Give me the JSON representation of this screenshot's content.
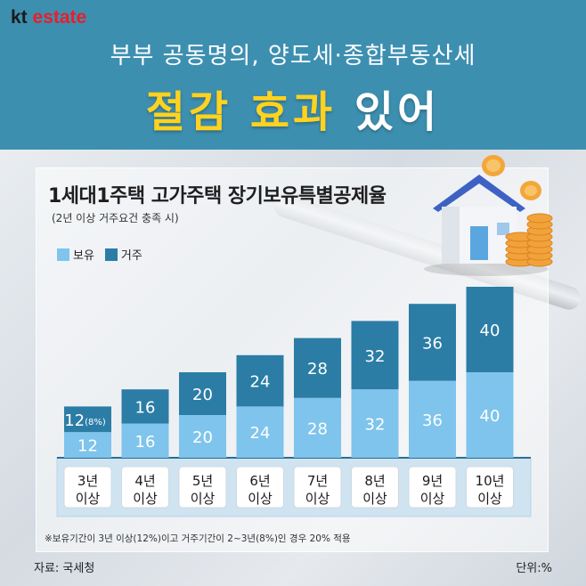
{
  "brand": {
    "kt": "kt",
    "estate": "estate"
  },
  "header": {
    "subtitle": "부부 공동명의, 양도세·종합부동산세",
    "headline_yellow": "절감 효과",
    "headline_white": "있어"
  },
  "chart_title": "1세대1주택 고가주택 장기보유특별공제율",
  "chart_subtitle": "(2년 이상 거주요건 충족 시)",
  "legend": [
    {
      "label": "보유",
      "color": "#7fc4ec"
    },
    {
      "label": "거주",
      "color": "#2b7da6"
    }
  ],
  "chart_data": {
    "type": "bar",
    "stacked": true,
    "categories": [
      [
        "3년",
        "이상"
      ],
      [
        "4년",
        "이상"
      ],
      [
        "5년",
        "이상"
      ],
      [
        "6년",
        "이상"
      ],
      [
        "7년",
        "이상"
      ],
      [
        "8년",
        "이상"
      ],
      [
        "9년",
        "이상"
      ],
      [
        "10년",
        "이상"
      ]
    ],
    "series": [
      {
        "name": "보유",
        "values": [
          12,
          16,
          20,
          24,
          28,
          32,
          36,
          40
        ],
        "color": "#7fc4ec"
      },
      {
        "name": "거주",
        "values": [
          12,
          16,
          20,
          24,
          28,
          32,
          36,
          40
        ],
        "color": "#2b7da6"
      }
    ],
    "labels": {
      "보유": [
        "12",
        "16",
        "20",
        "24",
        "28",
        "32",
        "36",
        "40"
      ],
      "거주": [
        "12",
        "16",
        "20",
        "24",
        "28",
        "32",
        "36",
        "40"
      ]
    },
    "annotation": {
      "category_index": 0,
      "text": "(8%)"
    },
    "ylim": [
      0,
      80
    ],
    "grid": false
  },
  "note": "※보유기간이 3년 이상(12%)이고 거주기간이 2~3년(8%)인 경우 20% 적용",
  "footer": {
    "source": "자료: 국세청",
    "unit": "단위:%"
  }
}
